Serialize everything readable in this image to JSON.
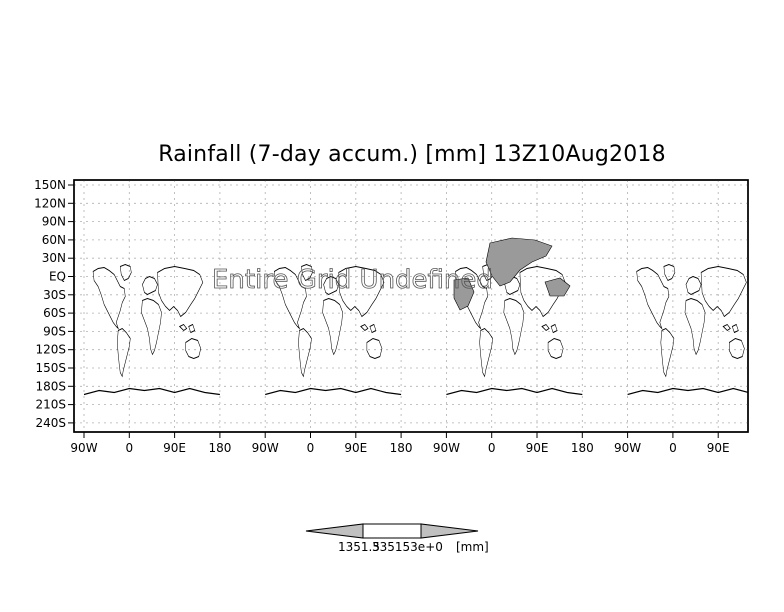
{
  "title": "Rainfall (7-day accum.) [mm] 13Z10Aug2018",
  "watermark": "Entire Grid Undefined",
  "y_ticks": [
    "150N",
    "120N",
    "90N",
    "60N",
    "30N",
    "EQ",
    "30S",
    "60S",
    "90S",
    "120S",
    "150S",
    "180S",
    "210S",
    "240S"
  ],
  "x_ticks": [
    "90W",
    "0",
    "90E",
    "180",
    "90W",
    "0",
    "90E",
    "180",
    "90W",
    "0",
    "90E",
    "180",
    "90W",
    "0",
    "90E"
  ],
  "colorbar": {
    "label": "1351.5",
    "label2": "335153e+0",
    "unit": "[mm]",
    "left_color": "#c0c0c0",
    "middle_color": "#ffffff",
    "right_color": "#c0c0c0"
  },
  "colors": {
    "land_outline": "#000000",
    "rain_shade": "#9a9a9a",
    "grid": "#b0b0b0"
  }
}
